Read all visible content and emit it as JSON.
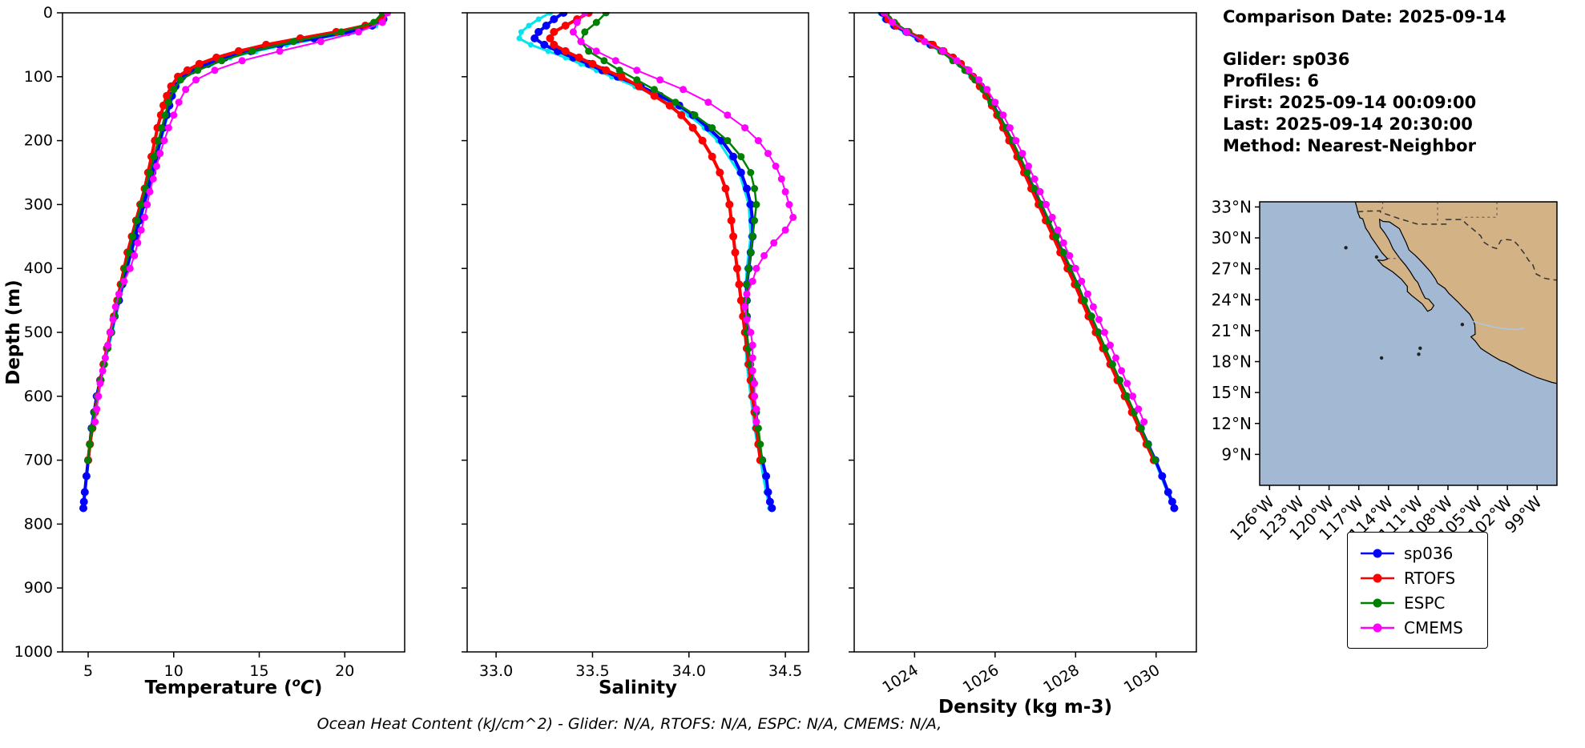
{
  "info": {
    "comparison_date": "Comparison Date: 2025-09-14",
    "glider": "Glider: sp036",
    "profiles": "Profiles: 6",
    "first": "First: 2025-09-14 00:09:00",
    "last": "Last: 2025-09-14 20:30:00",
    "method": "Method: Nearest-Neighbor"
  },
  "caption": "Ocean Heat Content (kJ/cm^2) - Glider: N/A,  RTOFS: N/A,  ESPC: N/A,  CMEMS: N/A,",
  "chart_data": {
    "type": "line",
    "description": "Glider-model comparison profiles: temperature, salinity and density versus depth, with location map",
    "depth_axis": {
      "label": "Depth (m)",
      "lim": [
        0,
        1000
      ],
      "ticks": [
        0,
        100,
        200,
        300,
        400,
        500,
        600,
        700,
        800,
        900,
        1000
      ]
    },
    "panels": [
      {
        "id": "temperature",
        "value_key": "temperature",
        "xlabel": "Temperature (°C)",
        "xlabel_parts": {
          "pre": "Temperature (",
          "sup": "o",
          "body": "C",
          "post": ")"
        },
        "xlim": [
          3.5,
          23.5
        ],
        "xticks": [
          5,
          10,
          15,
          20
        ],
        "xtick_labels": [
          "5",
          "10",
          "15",
          "20"
        ],
        "rotate_xticks": false
      },
      {
        "id": "salinity",
        "value_key": "salinity",
        "xlabel": "Salinity",
        "xlim": [
          32.85,
          34.62
        ],
        "xticks": [
          33.0,
          33.5,
          34.0,
          34.5
        ],
        "xtick_labels": [
          "33.0",
          "33.5",
          "34.0",
          "34.5"
        ],
        "rotate_xticks": false
      },
      {
        "id": "density",
        "value_key": "density",
        "xlabel": "Density (kg m-3)",
        "xlim": [
          1022.5,
          1031.0
        ],
        "xticks": [
          1024,
          1026,
          1028,
          1030
        ],
        "xtick_labels": [
          "1024",
          "1026",
          "1028",
          "1030"
        ],
        "rotate_xticks": true
      }
    ],
    "series": [
      {
        "name": "sp036-raw",
        "color": "#00e5ee",
        "in_legend": false,
        "line_width": 3,
        "marker_size": 3.5,
        "depth": [
          0,
          10,
          20,
          30,
          40,
          50,
          60,
          70,
          80,
          90,
          100,
          115,
          130,
          145,
          160,
          180,
          200,
          250,
          300,
          350,
          400,
          450,
          500,
          550,
          600,
          650,
          700,
          750,
          775
        ],
        "temperature": [
          22.4,
          22.35,
          21.8,
          20.5,
          18.6,
          16.6,
          14.8,
          13.3,
          12.2,
          11.3,
          10.6,
          10.2,
          9.95,
          9.8,
          9.65,
          9.45,
          9.25,
          8.8,
          8.3,
          7.8,
          7.3,
          6.85,
          6.4,
          5.95,
          5.55,
          5.25,
          5.02,
          4.82,
          4.72
        ],
        "salinity": [
          33.28,
          33.22,
          33.17,
          33.13,
          33.12,
          33.18,
          33.27,
          33.36,
          33.44,
          33.52,
          33.6,
          33.72,
          33.83,
          33.93,
          34.0,
          34.08,
          34.15,
          34.26,
          34.31,
          34.32,
          34.3,
          34.29,
          34.29,
          34.3,
          34.32,
          34.34,
          34.37,
          34.4,
          34.42
        ],
        "density": [
          1023.15,
          1023.25,
          1023.45,
          1023.75,
          1024.05,
          1024.35,
          1024.65,
          1024.9,
          1025.1,
          1025.25,
          1025.4,
          1025.6,
          1025.75,
          1025.9,
          1026.05,
          1026.2,
          1026.35,
          1026.75,
          1027.12,
          1027.48,
          1027.84,
          1028.18,
          1028.53,
          1028.88,
          1029.24,
          1029.6,
          1029.96,
          1030.28,
          1030.43
        ]
      },
      {
        "name": "sp036",
        "color": "#0000ff",
        "in_legend": true,
        "line_width": 4,
        "marker_size": 5,
        "depth": [
          0,
          10,
          20,
          30,
          40,
          50,
          60,
          70,
          80,
          90,
          100,
          115,
          130,
          145,
          160,
          180,
          200,
          225,
          250,
          275,
          300,
          325,
          350,
          375,
          400,
          425,
          450,
          475,
          500,
          525,
          550,
          575,
          600,
          625,
          650,
          675,
          700,
          725,
          750,
          765,
          775
        ],
        "temperature": [
          22.3,
          22.25,
          21.6,
          20.2,
          18.2,
          16.2,
          14.5,
          13.0,
          12.0,
          11.1,
          10.5,
          10.1,
          9.9,
          9.75,
          9.6,
          9.4,
          9.2,
          9.0,
          8.75,
          8.5,
          8.25,
          8.0,
          7.75,
          7.5,
          7.25,
          7.0,
          6.8,
          6.55,
          6.35,
          6.1,
          5.9,
          5.7,
          5.5,
          5.35,
          5.2,
          5.1,
          5.0,
          4.9,
          4.8,
          4.75,
          4.72
        ],
        "salinity": [
          33.35,
          33.3,
          33.26,
          33.22,
          33.2,
          33.25,
          33.32,
          33.4,
          33.48,
          33.55,
          33.63,
          33.75,
          33.85,
          33.95,
          34.02,
          34.1,
          34.17,
          34.23,
          34.27,
          34.3,
          34.32,
          34.33,
          34.33,
          34.32,
          34.31,
          34.3,
          34.3,
          34.3,
          34.3,
          34.3,
          34.31,
          34.32,
          34.33,
          34.34,
          34.35,
          34.36,
          34.38,
          34.4,
          34.41,
          34.42,
          34.43
        ],
        "density": [
          1023.2,
          1023.3,
          1023.5,
          1023.8,
          1024.1,
          1024.4,
          1024.7,
          1024.95,
          1025.15,
          1025.3,
          1025.45,
          1025.65,
          1025.8,
          1025.95,
          1026.1,
          1026.25,
          1026.4,
          1026.6,
          1026.78,
          1026.96,
          1027.14,
          1027.32,
          1027.5,
          1027.68,
          1027.86,
          1028.04,
          1028.2,
          1028.38,
          1028.55,
          1028.72,
          1028.9,
          1029.08,
          1029.26,
          1029.44,
          1029.62,
          1029.8,
          1029.98,
          1030.15,
          1030.3,
          1030.4,
          1030.45
        ]
      },
      {
        "name": "RTOFS",
        "color": "#ff0000",
        "in_legend": true,
        "line_width": 4,
        "marker_size": 5,
        "depth": [
          0,
          10,
          20,
          30,
          40,
          50,
          60,
          70,
          80,
          90,
          100,
          115,
          130,
          145,
          160,
          180,
          200,
          225,
          250,
          275,
          300,
          325,
          350,
          375,
          400,
          425,
          450,
          475,
          500,
          525,
          550,
          575,
          600,
          625,
          650,
          675,
          700
        ],
        "temperature": [
          22.4,
          22.2,
          21.2,
          19.5,
          17.4,
          15.4,
          13.8,
          12.5,
          11.5,
          10.8,
          10.25,
          9.85,
          9.6,
          9.4,
          9.25,
          9.05,
          8.9,
          8.7,
          8.5,
          8.3,
          8.05,
          7.8,
          7.55,
          7.3,
          7.1,
          6.9,
          6.7,
          6.5,
          6.3,
          6.1,
          5.9,
          5.72,
          5.55,
          5.4,
          5.25,
          5.1,
          5.0
        ],
        "salinity": [
          33.48,
          33.42,
          33.36,
          33.3,
          33.28,
          33.3,
          33.36,
          33.43,
          33.5,
          33.57,
          33.65,
          33.74,
          33.82,
          33.9,
          33.96,
          34.02,
          34.07,
          34.12,
          34.16,
          34.19,
          34.21,
          34.22,
          34.23,
          34.24,
          34.25,
          34.26,
          34.27,
          34.28,
          34.29,
          34.3,
          34.31,
          34.32,
          34.33,
          34.34,
          34.35,
          34.36,
          34.37
        ],
        "density": [
          1023.25,
          1023.35,
          1023.55,
          1023.85,
          1024.15,
          1024.45,
          1024.72,
          1024.95,
          1025.15,
          1025.32,
          1025.45,
          1025.62,
          1025.78,
          1025.92,
          1026.05,
          1026.2,
          1026.35,
          1026.55,
          1026.72,
          1026.9,
          1027.08,
          1027.26,
          1027.44,
          1027.62,
          1027.8,
          1027.98,
          1028.15,
          1028.32,
          1028.5,
          1028.68,
          1028.86,
          1029.04,
          1029.22,
          1029.4,
          1029.58,
          1029.76,
          1029.94
        ]
      },
      {
        "name": "ESPC",
        "color": "#008000",
        "in_legend": true,
        "line_width": 2.5,
        "marker_size": 4.5,
        "depth": [
          0,
          15,
          30,
          45,
          60,
          75,
          90,
          105,
          120,
          140,
          160,
          180,
          200,
          225,
          250,
          275,
          300,
          325,
          350,
          375,
          400,
          425,
          450,
          475,
          500,
          525,
          550,
          575,
          600,
          625,
          650,
          675,
          700
        ],
        "temperature": [
          22.2,
          21.7,
          19.8,
          17.0,
          14.6,
          12.8,
          11.4,
          10.4,
          10.0,
          9.7,
          9.5,
          9.3,
          9.1,
          8.85,
          8.6,
          8.35,
          8.1,
          7.85,
          7.6,
          7.4,
          7.15,
          6.95,
          6.75,
          6.55,
          6.35,
          6.15,
          5.95,
          5.75,
          5.55,
          5.38,
          5.22,
          5.1,
          5.0
        ],
        "salinity": [
          33.57,
          33.52,
          33.46,
          33.44,
          33.48,
          33.56,
          33.64,
          33.73,
          33.82,
          33.93,
          34.03,
          34.12,
          34.2,
          34.27,
          34.32,
          34.34,
          34.35,
          34.34,
          34.33,
          34.32,
          34.31,
          34.3,
          34.3,
          34.3,
          34.3,
          34.31,
          34.32,
          34.33,
          34.34,
          34.35,
          34.36,
          34.37,
          34.38
        ],
        "density": [
          1023.3,
          1023.5,
          1023.85,
          1024.25,
          1024.65,
          1024.95,
          1025.25,
          1025.5,
          1025.7,
          1025.9,
          1026.1,
          1026.27,
          1026.43,
          1026.62,
          1026.8,
          1026.98,
          1027.16,
          1027.34,
          1027.52,
          1027.7,
          1027.88,
          1028.05,
          1028.22,
          1028.4,
          1028.57,
          1028.74,
          1028.92,
          1029.1,
          1029.28,
          1029.46,
          1029.63,
          1029.8,
          1029.97
        ]
      },
      {
        "name": "CMEMS",
        "color": "#ff00ff",
        "in_legend": true,
        "line_width": 2,
        "marker_size": 4.5,
        "depth": [
          0,
          15,
          30,
          45,
          60,
          75,
          90,
          105,
          120,
          140,
          160,
          180,
          200,
          220,
          240,
          260,
          280,
          300,
          320,
          340,
          360,
          380,
          400,
          420,
          440,
          460,
          480,
          500,
          520,
          540,
          560,
          580,
          600,
          620,
          640
        ],
        "temperature": [
          22.5,
          22.2,
          20.8,
          18.6,
          16.2,
          14.0,
          12.4,
          11.3,
          10.7,
          10.3,
          10.0,
          9.7,
          9.45,
          9.2,
          9.0,
          8.8,
          8.6,
          8.45,
          8.3,
          8.1,
          7.9,
          7.7,
          7.45,
          7.1,
          6.8,
          6.6,
          6.45,
          6.3,
          6.15,
          6.0,
          5.85,
          5.7,
          5.6,
          5.5,
          5.4
        ],
        "salinity": [
          33.46,
          33.42,
          33.4,
          33.44,
          33.52,
          33.62,
          33.73,
          33.85,
          33.97,
          34.1,
          34.2,
          34.29,
          34.36,
          34.41,
          34.45,
          34.48,
          34.5,
          34.52,
          34.54,
          34.5,
          34.44,
          34.39,
          34.35,
          34.33,
          34.3,
          34.29,
          34.3,
          34.32,
          34.33,
          34.33,
          34.33,
          34.34,
          34.34,
          34.35,
          34.35
        ],
        "density": [
          1023.25,
          1023.45,
          1023.8,
          1024.25,
          1024.7,
          1025.05,
          1025.35,
          1025.6,
          1025.8,
          1026.0,
          1026.2,
          1026.37,
          1026.52,
          1026.68,
          1026.83,
          1026.98,
          1027.12,
          1027.27,
          1027.42,
          1027.56,
          1027.7,
          1027.85,
          1028.0,
          1028.15,
          1028.3,
          1028.44,
          1028.58,
          1028.72,
          1028.86,
          1029.0,
          1029.14,
          1029.28,
          1029.42,
          1029.56,
          1029.7
        ]
      }
    ],
    "legend": {
      "entries": [
        {
          "label": "sp036",
          "color": "#0000ff"
        },
        {
          "label": "RTOFS",
          "color": "#ff0000"
        },
        {
          "label": "ESPC",
          "color": "#008000"
        },
        {
          "label": "CMEMS",
          "color": "#ff00ff"
        }
      ]
    },
    "map": {
      "ocean_color": "#a2b8d3",
      "land_color": "#d3b286",
      "lon_range": [
        -127,
        -97
      ],
      "lat_range": [
        6.0,
        33.5
      ],
      "lat_ticks": [
        33,
        30,
        27,
        24,
        21,
        18,
        15,
        12,
        9
      ],
      "lat_labels": [
        "33°N",
        "30°N",
        "27°N",
        "24°N",
        "21°N",
        "18°N",
        "15°N",
        "12°N",
        "9°N"
      ],
      "lon_ticks": [
        -126,
        -123,
        -120,
        -117,
        -114,
        -111,
        -108,
        -105,
        -102,
        -99
      ],
      "lon_labels": [
        "126°W",
        "123°W",
        "120°W",
        "117°W",
        "114°W",
        "111°W",
        "108°W",
        "105°W",
        "102°W",
        "99°W"
      ]
    }
  }
}
